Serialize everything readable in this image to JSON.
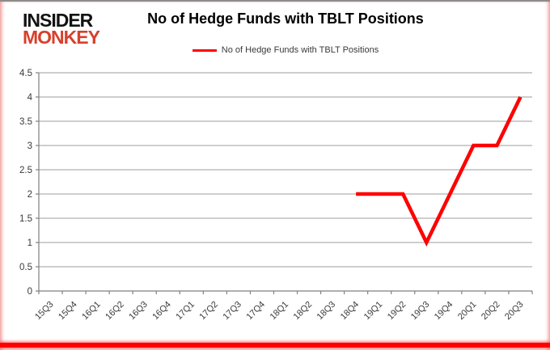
{
  "logo": {
    "line1": "INSIDER",
    "line2": "MONKEY",
    "color": "#d7402c"
  },
  "header": {
    "title": "No of Hedge Funds with TBLT Positions"
  },
  "legend": {
    "label": "No of Hedge Funds with TBLT Positions",
    "swatch_color": "#ff0000"
  },
  "colors": {
    "series": "#ff0000",
    "gridline": "#9c9c9c",
    "axis": "#808080",
    "tick_label": "#3a3a3a",
    "frame_glow": "#eb5a5a",
    "bottom_bar": "#ff0000"
  },
  "chart_data": {
    "type": "line",
    "title": "No of Hedge Funds with TBLT Positions",
    "categories": [
      "15Q3",
      "15Q4",
      "16Q1",
      "16Q2",
      "16Q3",
      "16Q4",
      "17Q1",
      "17Q2",
      "17Q3",
      "17Q4",
      "18Q1",
      "18Q2",
      "18Q3",
      "18Q4",
      "19Q1",
      "19Q2",
      "19Q3",
      "19Q4",
      "20Q1",
      "20Q2",
      "20Q3"
    ],
    "series": [
      {
        "name": "No of Hedge Funds with TBLT Positions",
        "color": "#ff0000",
        "values": [
          null,
          null,
          null,
          null,
          null,
          null,
          null,
          null,
          null,
          null,
          null,
          null,
          null,
          2,
          2,
          2,
          1,
          2,
          3,
          3,
          4
        ]
      }
    ],
    "xlabel": "",
    "ylabel": "",
    "ylim": [
      0,
      4.5
    ],
    "ytick_step": 0.5,
    "grid": true,
    "legend_position": "top"
  }
}
